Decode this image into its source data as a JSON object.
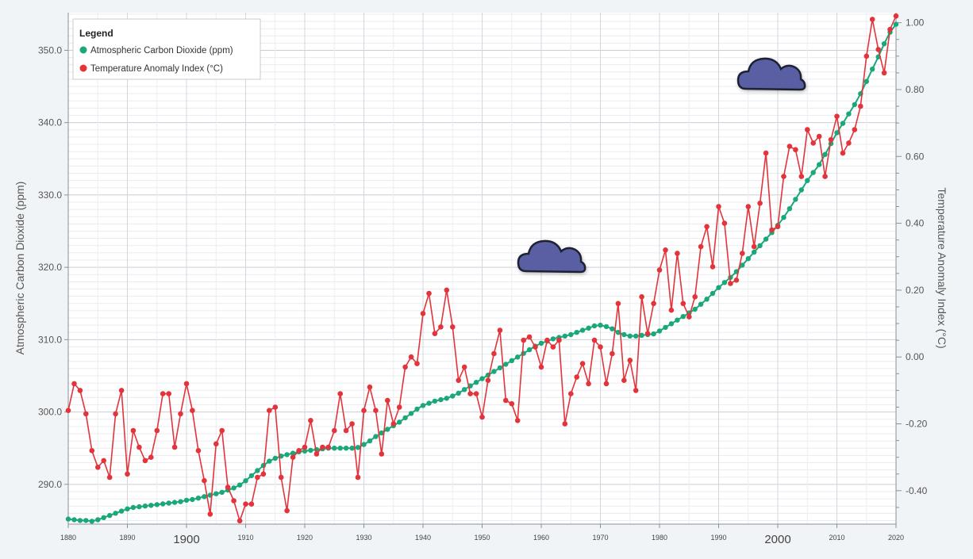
{
  "chart_data": {
    "type": "line",
    "x_ticks": [
      1880,
      1890,
      1900,
      1910,
      1920,
      1930,
      1940,
      1950,
      1960,
      1970,
      1980,
      1990,
      2000,
      2010,
      2020
    ],
    "major_x_ticks": [
      1900,
      2000
    ],
    "x_range": [
      1880,
      2020
    ],
    "ylabel_left": "Atmospheric Carbon Dioxide (ppm)",
    "ylabel_right": "Temperature Anomaly Index (°C)",
    "y_left_range": [
      284.5,
      355.2
    ],
    "y_left_ticks": [
      "290.0",
      "300.0",
      "310.0",
      "320.0",
      "330.0",
      "340.0",
      "350.0"
    ],
    "y_right_range": [
      -0.5,
      1.03
    ],
    "y_right_ticks": [
      "-0.40",
      "-0.20",
      "0.00",
      "0.20",
      "0.40",
      "0.60",
      "0.80",
      "1.00"
    ],
    "grid": true,
    "legend": {
      "title": "Legend",
      "position": "top-left"
    },
    "series": [
      {
        "name": "Atmospheric Carbon Dioxide (ppm)",
        "axis": "left",
        "color": "#1aa77a",
        "x": [
          1880,
          1881,
          1882,
          1883,
          1884,
          1885,
          1886,
          1887,
          1888,
          1889,
          1890,
          1891,
          1892,
          1893,
          1894,
          1895,
          1896,
          1897,
          1898,
          1899,
          1900,
          1901,
          1902,
          1903,
          1904,
          1905,
          1906,
          1907,
          1908,
          1909,
          1910,
          1911,
          1912,
          1913,
          1914,
          1915,
          1916,
          1917,
          1918,
          1919,
          1920,
          1921,
          1922,
          1923,
          1924,
          1925,
          1926,
          1927,
          1928,
          1929,
          1930,
          1931,
          1932,
          1933,
          1934,
          1935,
          1936,
          1937,
          1938,
          1939,
          1940,
          1941,
          1942,
          1943,
          1944,
          1945,
          1946,
          1947,
          1948,
          1949,
          1950,
          1951,
          1952,
          1953,
          1954,
          1955,
          1956,
          1957,
          1958,
          1959,
          1960,
          1961,
          1962,
          1963,
          1964,
          1965,
          1966,
          1967,
          1968,
          1969,
          1970,
          1971,
          1972,
          1973,
          1974,
          1975,
          1976,
          1977,
          1978,
          1979,
          1980,
          1981,
          1982,
          1983,
          1984,
          1985,
          1986,
          1987,
          1988,
          1989,
          1990,
          1991,
          1992,
          1993,
          1994,
          1995,
          1996,
          1997,
          1998,
          1999,
          2000,
          2001,
          2002,
          2003,
          2004,
          2005,
          2006,
          2007,
          2008,
          2009,
          2010,
          2011,
          2012,
          2013,
          2014,
          2015,
          2016,
          2017,
          2018,
          2019,
          2020
        ],
        "values": [
          285.2,
          285.1,
          285.0,
          285.0,
          284.9,
          285.1,
          285.4,
          285.7,
          286.0,
          286.3,
          286.6,
          286.8,
          286.9,
          287.0,
          287.1,
          287.2,
          287.3,
          287.4,
          287.5,
          287.6,
          287.8,
          287.9,
          288.1,
          288.3,
          288.5,
          288.7,
          288.9,
          289.2,
          289.5,
          289.9,
          290.5,
          291.2,
          291.9,
          292.6,
          293.2,
          293.6,
          293.9,
          294.1,
          294.3,
          294.5,
          294.6,
          294.7,
          294.8,
          294.9,
          295.0,
          295.0,
          295.0,
          295.0,
          295.0,
          295.1,
          295.5,
          296.0,
          296.6,
          297.1,
          297.6,
          298.1,
          298.6,
          299.2,
          299.8,
          300.4,
          300.9,
          301.2,
          301.5,
          301.7,
          301.9,
          302.2,
          302.6,
          303.1,
          303.6,
          304.1,
          304.6,
          305.1,
          305.6,
          306.1,
          306.6,
          307.1,
          307.6,
          308.1,
          308.6,
          309.1,
          309.5,
          309.8,
          310.1,
          310.3,
          310.5,
          310.7,
          311.0,
          311.3,
          311.6,
          311.9,
          312.0,
          311.8,
          311.5,
          311.0,
          310.7,
          310.5,
          310.5,
          310.6,
          310.7,
          310.8,
          311.2,
          311.7,
          312.2,
          312.7,
          313.2,
          313.7,
          314.2,
          314.9,
          315.6,
          316.4,
          317.2,
          317.9,
          318.6,
          319.4,
          320.3,
          321.2,
          322.1,
          323.0,
          323.9,
          324.8,
          325.8,
          326.9,
          328.1,
          329.4,
          330.7,
          332.0,
          333.1,
          334.2,
          335.6,
          337.1,
          338.6,
          339.9,
          341.2,
          342.5,
          344.0,
          345.7,
          347.4,
          349.1,
          350.9,
          352.5,
          353.6
        ]
      },
      {
        "name": "Temperature Anomaly Index (°C)",
        "axis": "right",
        "color": "#e2343a",
        "x": [
          1880,
          1881,
          1882,
          1883,
          1884,
          1885,
          1886,
          1887,
          1888,
          1889,
          1890,
          1891,
          1892,
          1893,
          1894,
          1895,
          1896,
          1897,
          1898,
          1899,
          1900,
          1901,
          1902,
          1903,
          1904,
          1905,
          1906,
          1907,
          1908,
          1909,
          1910,
          1911,
          1912,
          1913,
          1914,
          1915,
          1916,
          1917,
          1918,
          1919,
          1920,
          1921,
          1922,
          1923,
          1924,
          1925,
          1926,
          1927,
          1928,
          1929,
          1930,
          1931,
          1932,
          1933,
          1934,
          1935,
          1936,
          1937,
          1938,
          1939,
          1940,
          1941,
          1942,
          1943,
          1944,
          1945,
          1946,
          1947,
          1948,
          1949,
          1950,
          1951,
          1952,
          1953,
          1954,
          1955,
          1956,
          1957,
          1958,
          1959,
          1960,
          1961,
          1962,
          1963,
          1964,
          1965,
          1966,
          1967,
          1968,
          1969,
          1970,
          1971,
          1972,
          1973,
          1974,
          1975,
          1976,
          1977,
          1978,
          1979,
          1980,
          1981,
          1982,
          1983,
          1984,
          1985,
          1986,
          1987,
          1988,
          1989,
          1990,
          1991,
          1992,
          1993,
          1994,
          1995,
          1996,
          1997,
          1998,
          1999,
          2000,
          2001,
          2002,
          2003,
          2004,
          2005,
          2006,
          2007,
          2008,
          2009,
          2010,
          2011,
          2012,
          2013,
          2014,
          2015,
          2016,
          2017,
          2018,
          2019,
          2020
        ],
        "values": [
          -0.16,
          -0.08,
          -0.1,
          -0.17,
          -0.28,
          -0.33,
          -0.31,
          -0.36,
          -0.17,
          -0.1,
          -0.35,
          -0.22,
          -0.27,
          -0.31,
          -0.3,
          -0.22,
          -0.11,
          -0.11,
          -0.27,
          -0.17,
          -0.08,
          -0.16,
          -0.28,
          -0.37,
          -0.47,
          -0.26,
          -0.22,
          -0.39,
          -0.43,
          -0.49,
          -0.44,
          -0.44,
          -0.36,
          -0.35,
          -0.16,
          -0.15,
          -0.36,
          -0.46,
          -0.3,
          -0.28,
          -0.27,
          -0.19,
          -0.29,
          -0.27,
          -0.27,
          -0.22,
          -0.11,
          -0.22,
          -0.2,
          -0.36,
          -0.16,
          -0.09,
          -0.16,
          -0.29,
          -0.13,
          -0.2,
          -0.15,
          -0.03,
          -0.0,
          -0.02,
          0.13,
          0.19,
          0.07,
          0.09,
          0.2,
          0.09,
          -0.07,
          -0.03,
          -0.11,
          -0.11,
          -0.18,
          -0.07,
          0.01,
          0.08,
          -0.13,
          -0.14,
          -0.19,
          0.05,
          0.06,
          0.03,
          -0.03,
          0.05,
          0.03,
          0.05,
          -0.2,
          -0.11,
          -0.06,
          -0.02,
          -0.08,
          0.05,
          0.03,
          -0.08,
          0.01,
          0.16,
          -0.07,
          -0.01,
          -0.1,
          0.18,
          0.07,
          0.16,
          0.26,
          0.32,
          0.14,
          0.31,
          0.16,
          0.12,
          0.18,
          0.33,
          0.39,
          0.27,
          0.45,
          0.4,
          0.22,
          0.23,
          0.31,
          0.45,
          0.33,
          0.46,
          0.61,
          0.38,
          0.39,
          0.54,
          0.63,
          0.62,
          0.54,
          0.68,
          0.64,
          0.66,
          0.54,
          0.65,
          0.72,
          0.61,
          0.64,
          0.68,
          0.75,
          0.9,
          1.01,
          0.92,
          0.85,
          0.98,
          1.02
        ]
      }
    ]
  }
}
